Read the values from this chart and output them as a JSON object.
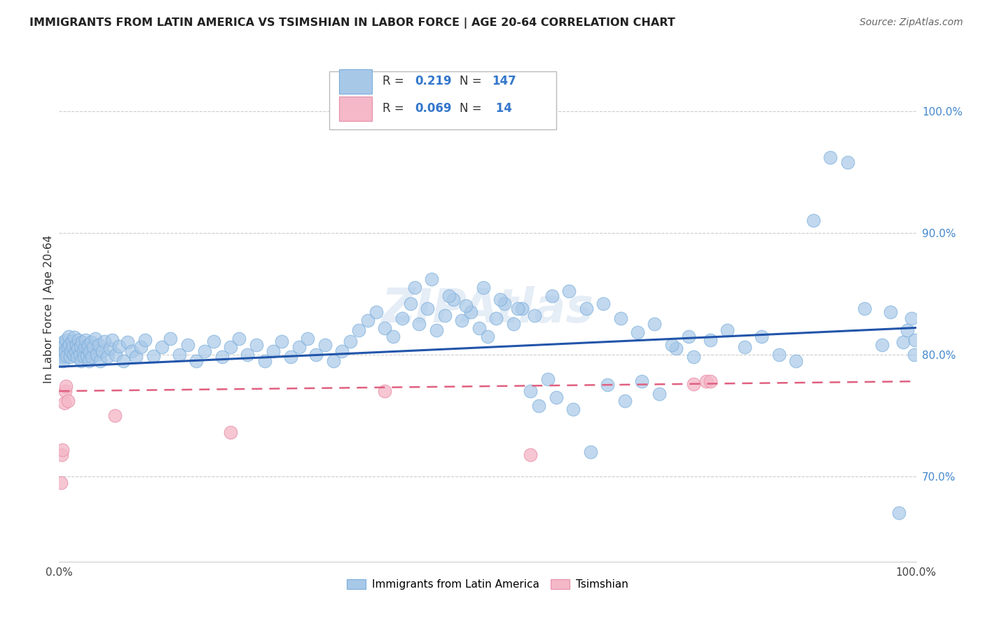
{
  "title": "IMMIGRANTS FROM LATIN AMERICA VS TSIMSHIAN IN LABOR FORCE | AGE 20-64 CORRELATION CHART",
  "source": "Source: ZipAtlas.com",
  "ylabel": "In Labor Force | Age 20-64",
  "xlim": [
    0.0,
    1.0
  ],
  "ylim": [
    0.63,
    1.045
  ],
  "ytick_vals": [
    0.7,
    0.8,
    0.9,
    1.0
  ],
  "blue_color": "#a8c8e8",
  "blue_edge_color": "#7aaedc",
  "pink_color": "#f4b8c8",
  "pink_edge_color": "#e890a8",
  "blue_line_color": "#2255aa",
  "pink_line_color": "#e06080",
  "blue_R": "0.219",
  "blue_N": "147",
  "pink_R": "0.069",
  "pink_N": "14",
  "legend_label_blue": "Immigrants from Latin America",
  "legend_label_pink": "Tsimshian",
  "watermark": "ZIPAtlas",
  "background_color": "#ffffff",
  "grid_color": "#cccccc",
  "title_color": "#222222",
  "source_color": "#666666",
  "ytick_color": "#4488cc",
  "xtick_color": "#444444",
  "blue_x": [
    0.002,
    0.003,
    0.004,
    0.005,
    0.005,
    0.006,
    0.007,
    0.008,
    0.009,
    0.01,
    0.011,
    0.012,
    0.013,
    0.014,
    0.015,
    0.016,
    0.017,
    0.018,
    0.019,
    0.02,
    0.021,
    0.022,
    0.023,
    0.024,
    0.025,
    0.026,
    0.027,
    0.028,
    0.029,
    0.03,
    0.031,
    0.032,
    0.033,
    0.034,
    0.035,
    0.036,
    0.037,
    0.038,
    0.04,
    0.042,
    0.044,
    0.046,
    0.048,
    0.05,
    0.053,
    0.056,
    0.059,
    0.062,
    0.066,
    0.07,
    0.075,
    0.08,
    0.085,
    0.09,
    0.095,
    0.1,
    0.11,
    0.12,
    0.13,
    0.14,
    0.15,
    0.16,
    0.17,
    0.18,
    0.19,
    0.2,
    0.21,
    0.22,
    0.23,
    0.24,
    0.25,
    0.26,
    0.27,
    0.28,
    0.29,
    0.3,
    0.31,
    0.32,
    0.33,
    0.34,
    0.35,
    0.36,
    0.37,
    0.38,
    0.39,
    0.4,
    0.41,
    0.42,
    0.43,
    0.44,
    0.45,
    0.46,
    0.47,
    0.48,
    0.49,
    0.5,
    0.51,
    0.52,
    0.53,
    0.54,
    0.55,
    0.56,
    0.57,
    0.58,
    0.6,
    0.62,
    0.64,
    0.66,
    0.68,
    0.7,
    0.72,
    0.74,
    0.76,
    0.78,
    0.8,
    0.82,
    0.84,
    0.86,
    0.88,
    0.9,
    0.92,
    0.94,
    0.96,
    0.97,
    0.98,
    0.985,
    0.99,
    0.995,
    0.998,
    0.999,
    0.415,
    0.435,
    0.455,
    0.475,
    0.495,
    0.515,
    0.535,
    0.555,
    0.575,
    0.595,
    0.615,
    0.635,
    0.655,
    0.675,
    0.695,
    0.715,
    0.735
  ],
  "blue_y": [
    0.8,
    0.805,
    0.798,
    0.81,
    0.795,
    0.808,
    0.803,
    0.812,
    0.799,
    0.806,
    0.815,
    0.808,
    0.798,
    0.803,
    0.811,
    0.806,
    0.8,
    0.814,
    0.802,
    0.808,
    0.798,
    0.805,
    0.812,
    0.8,
    0.807,
    0.795,
    0.81,
    0.803,
    0.798,
    0.806,
    0.812,
    0.799,
    0.805,
    0.808,
    0.795,
    0.802,
    0.81,
    0.798,
    0.806,
    0.813,
    0.8,
    0.808,
    0.795,
    0.803,
    0.811,
    0.798,
    0.805,
    0.812,
    0.8,
    0.807,
    0.795,
    0.81,
    0.803,
    0.798,
    0.806,
    0.812,
    0.799,
    0.806,
    0.813,
    0.8,
    0.808,
    0.795,
    0.803,
    0.811,
    0.798,
    0.806,
    0.813,
    0.8,
    0.808,
    0.795,
    0.803,
    0.811,
    0.798,
    0.806,
    0.813,
    0.8,
    0.808,
    0.795,
    0.803,
    0.811,
    0.82,
    0.828,
    0.835,
    0.822,
    0.815,
    0.83,
    0.842,
    0.825,
    0.838,
    0.82,
    0.832,
    0.845,
    0.828,
    0.835,
    0.822,
    0.815,
    0.83,
    0.842,
    0.825,
    0.838,
    0.77,
    0.758,
    0.78,
    0.765,
    0.755,
    0.72,
    0.775,
    0.762,
    0.778,
    0.768,
    0.805,
    0.798,
    0.812,
    0.82,
    0.806,
    0.815,
    0.8,
    0.795,
    0.91,
    0.962,
    0.958,
    0.838,
    0.808,
    0.835,
    0.67,
    0.81,
    0.82,
    0.83,
    0.8,
    0.812,
    0.855,
    0.862,
    0.848,
    0.84,
    0.855,
    0.845,
    0.838,
    0.832,
    0.848,
    0.852,
    0.838,
    0.842,
    0.83,
    0.818,
    0.825,
    0.808,
    0.815
  ],
  "pink_x": [
    0.002,
    0.003,
    0.004,
    0.006,
    0.007,
    0.008,
    0.01,
    0.065,
    0.2,
    0.38,
    0.55,
    0.74,
    0.755,
    0.76
  ],
  "pink_y": [
    0.695,
    0.718,
    0.722,
    0.76,
    0.77,
    0.774,
    0.762,
    0.75,
    0.736,
    0.77,
    0.718,
    0.776,
    0.778,
    0.778
  ]
}
